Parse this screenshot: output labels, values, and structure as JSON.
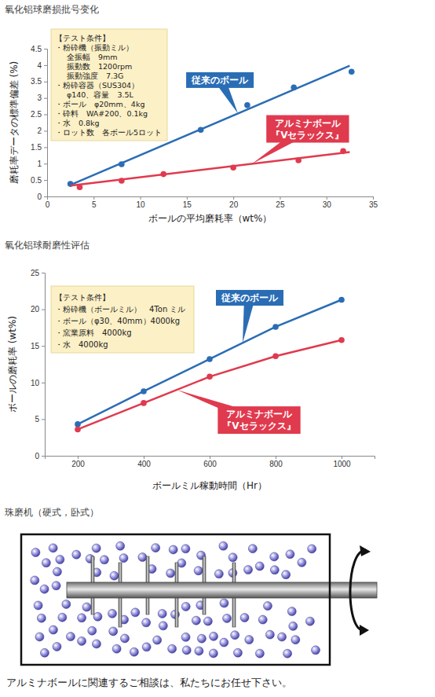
{
  "chart_data": [
    {
      "type": "scatter",
      "title": "氧化铝球磨损批号变化",
      "x_label": "ボールの平均磨耗率（wt%）",
      "y_label": "磨耗率データの標準偏差 (%)",
      "xlim": [
        0,
        35
      ],
      "xticks": [
        0,
        5,
        10,
        15,
        20,
        25,
        30,
        35
      ],
      "ylim": [
        0,
        4.5
      ],
      "yticks": [
        0,
        0.5,
        1,
        1.5,
        2,
        2.5,
        3,
        3.5,
        4,
        4.5
      ],
      "grid": false,
      "annotations": [
        "【テスト条件】",
        "・粉砕機（振動ミル）",
        "全振幅　9mm",
        "振動数　1200rpm",
        "振動強度　7.3G",
        "・粉砕容器（SUS304）",
        "φ140、容量　3.5L",
        "・ボール　φ20mm、4kg",
        "・砕料　WA#200、0.1kg",
        "・水　0.8kg",
        "・ロット数　各ボール5ロット"
      ],
      "series": [
        {
          "name": "従来のボール",
          "color": "#2a6db5",
          "marker": "circle",
          "x": [
            2.5,
            8,
            16.5,
            21.5,
            26.5,
            32.7
          ],
          "values": [
            0.38,
            0.98,
            2.03,
            2.78,
            3.32,
            3.8
          ],
          "trend_x": [
            2.5,
            32.5
          ],
          "trend_values": [
            0.35,
            3.98
          ]
        },
        {
          "name": "アルミナボール\n『Vセラックス』",
          "color": "#e03a4e",
          "marker": "circle",
          "x": [
            3.5,
            8,
            12.5,
            20,
            27,
            31.8
          ],
          "values": [
            0.28,
            0.48,
            0.68,
            0.88,
            1.1,
            1.38
          ],
          "trend_x": [
            2.5,
            32.5
          ],
          "trend_values": [
            0.33,
            1.35
          ]
        }
      ]
    },
    {
      "type": "line",
      "title": "氧化铝球耐磨性评估",
      "x_label": "ボールミル稼動時間（Hr）",
      "y_label": "ボールの磨耗率 (wt%)",
      "xlim": [
        100,
        1100
      ],
      "xticks": [
        200,
        400,
        600,
        800,
        1000
      ],
      "ylim": [
        0,
        25
      ],
      "yticks": [
        0,
        5,
        10,
        15,
        20,
        25
      ],
      "grid": false,
      "annotations": [
        "【テスト条件】",
        "・粉砕機（ボールミル）　4Ton ミル",
        "・ボール（φ30、40mm）4000kg",
        "・窯業原料　4000kg",
        "・水　4000kg"
      ],
      "x": [
        200,
        400,
        600,
        800,
        1000
      ],
      "series": [
        {
          "name": "従来のボール",
          "color": "#2a6db5",
          "marker": "circle",
          "values": [
            4.3,
            8.8,
            13.2,
            17.6,
            21.3
          ]
        },
        {
          "name": "アルミナボール\n『Vセラックス』",
          "color": "#e03a4e",
          "marker": "circle",
          "values": [
            3.6,
            7.2,
            10.8,
            13.6,
            15.8
          ]
        }
      ]
    }
  ],
  "diagram": {
    "title": "珠磨机（硬式，卧式）"
  },
  "footer": "アルミナボールに関連するご相談は、私たちにお任せ下さい。"
}
